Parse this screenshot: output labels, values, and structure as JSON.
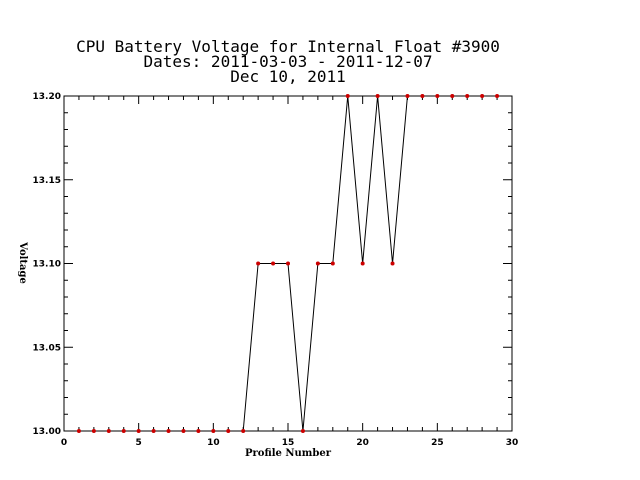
{
  "chart_data": {
    "type": "line",
    "title_lines": [
      "CPU Battery Voltage for Internal Float #3900",
      "Dates:  2011-03-03 -  2011-12-07",
      "Dec 10, 2011"
    ],
    "xlabel": "Profile Number",
    "ylabel": "Voltage",
    "xlim": [
      0,
      30
    ],
    "ylim": [
      13.0,
      13.2
    ],
    "x_ticks": [
      0,
      5,
      10,
      15,
      20,
      25,
      30
    ],
    "y_ticks": [
      13.0,
      13.05,
      13.1,
      13.15,
      13.2
    ],
    "y_tick_labels": [
      "13.00",
      "13.05",
      "13.10",
      "13.15",
      "13.20"
    ],
    "grid": false,
    "series": [
      {
        "line_color": "#000000",
        "marker_color": "#cc0000",
        "x": [
          1,
          2,
          3,
          4,
          5,
          6,
          7,
          8,
          9,
          10,
          11,
          12,
          13,
          14,
          15,
          16,
          17,
          18,
          19,
          20,
          21,
          22,
          23,
          24,
          25,
          26,
          27,
          28,
          29
        ],
        "y": [
          13.0,
          13.0,
          13.0,
          13.0,
          13.0,
          13.0,
          13.0,
          13.0,
          13.0,
          13.0,
          13.0,
          13.0,
          13.1,
          13.1,
          13.1,
          13.0,
          13.1,
          13.1,
          13.2,
          13.1,
          13.2,
          13.1,
          13.2,
          13.2,
          13.2,
          13.2,
          13.2,
          13.2,
          13.2
        ]
      }
    ]
  }
}
